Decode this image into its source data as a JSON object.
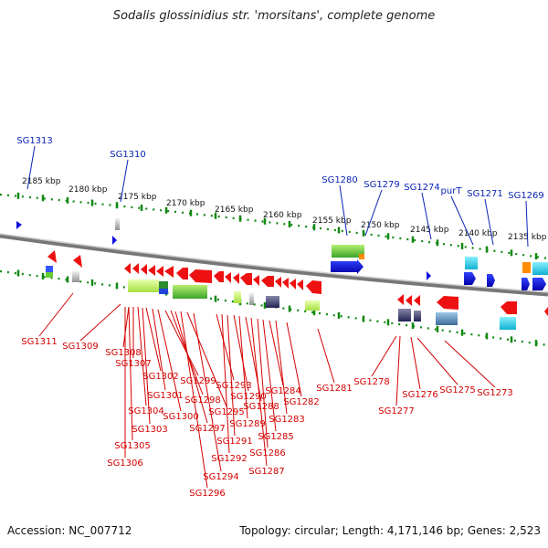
{
  "title": "Sodalis glossinidius str. 'morsitans', complete genome",
  "accession": "Accession: NC_007712",
  "topology": "Topology: circular; Length: 4,171,146 bp; Genes: 2,523",
  "colors": {
    "blue_label": "#0b24b5",
    "red_label": "#d40000",
    "tick": "#118811",
    "backbone": "#888888"
  },
  "kbp_labels": [
    "2185 kbp",
    "2180 kbp",
    "2175 kbp",
    "2170 kbp",
    "2165 kbp",
    "2160 kbp",
    "2155 kbp",
    "2150 kbp",
    "2145 kbp",
    "2140 kbp",
    "2135 kbp"
  ],
  "top_labels": [
    "SG1313",
    "SG1310",
    "SG1280",
    "SG1279",
    "SG1274",
    "purT",
    "SG1271",
    "SG1269"
  ],
  "bottom_labels": [
    "SG1311",
    "SG1309",
    "SG1308",
    "SG1307",
    "SG1306",
    "SG1305",
    "SG1304",
    "SG1303",
    "SG1302",
    "SG1301",
    "SG1300",
    "SG1299",
    "SG1298",
    "SG1297",
    "SG1296",
    "SG1295",
    "SG1294",
    "SG1293",
    "SG1292",
    "SG1291",
    "SG1290",
    "SG1289",
    "SG1288",
    "SG1287",
    "SG1286",
    "SG1285",
    "SG1284",
    "SG1283",
    "SG1282",
    "SG1281",
    "SG1278",
    "SG1277",
    "SG1276",
    "SG1275",
    "SG1273"
  ]
}
